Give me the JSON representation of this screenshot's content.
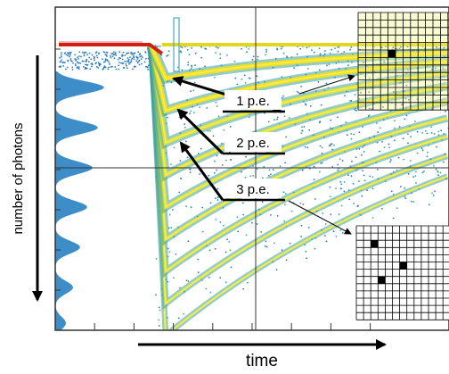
{
  "axes": {
    "y_label": "number of photons",
    "x_label": "time"
  },
  "labels": [
    "1 p.e.",
    "2 p.e.",
    "3 p.e."
  ]
}
